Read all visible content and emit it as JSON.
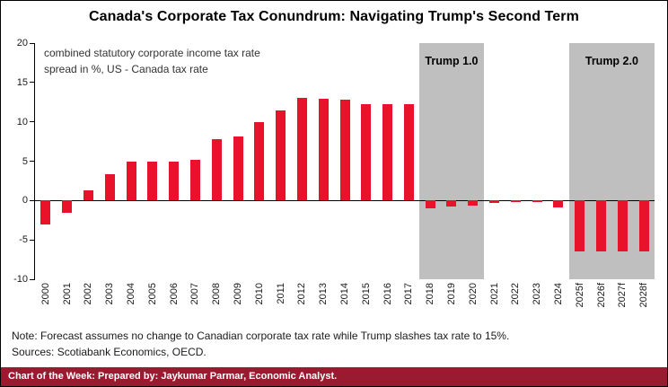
{
  "title": "Canada's Corporate Tax Conundrum: Navigating Trump's Second Term",
  "annotation": {
    "line1": "combined statutory corporate income tax rate",
    "line2": "spread in %, US - Canada tax rate"
  },
  "notes": {
    "line1": "Note: Forecast assumes no change to Canadian corporate tax rate while Trump slashes tax rate to 15%.",
    "line2": "Sources: Scotiabank Economics, OECD."
  },
  "footer": {
    "text": "Chart of the Week: Prepared by: Jaykumar Parmar, Economic Analyst."
  },
  "colors": {
    "bar": "#e8132b",
    "band": "#bfbfbf",
    "footer_bg": "#9a1b2f",
    "axis": "#000000",
    "tick_text": "#1a1a1a"
  },
  "chart_data": {
    "type": "bar",
    "title": "Canada's Corporate Tax Conundrum: Navigating Trump's Second Term",
    "subtitle": "combined statutory corporate income tax rate spread in %, US - Canada tax rate",
    "xlabel": "",
    "ylabel": "spread in %, US - Canada tax rate",
    "ylim": [
      -10,
      20
    ],
    "yticks": [
      20,
      15,
      10,
      5,
      0,
      -5,
      -10
    ],
    "grid": false,
    "legend": "none",
    "categories": [
      "2000",
      "2001",
      "2002",
      "2003",
      "2004",
      "2005",
      "2006",
      "2007",
      "2008",
      "2009",
      "2010",
      "2011",
      "2012",
      "2013",
      "2014",
      "2015",
      "2016",
      "2017",
      "2018",
      "2019",
      "2020",
      "2021",
      "2022",
      "2023",
      "2024",
      "2025f",
      "2026f",
      "2027f",
      "2028f"
    ],
    "values": [
      -3.0,
      -1.6,
      1.3,
      3.4,
      4.9,
      5.0,
      5.0,
      5.2,
      7.8,
      8.1,
      10.0,
      11.5,
      13.0,
      12.9,
      12.8,
      12.3,
      12.2,
      12.2,
      -1.0,
      -0.8,
      -0.6,
      -0.3,
      -0.2,
      -0.2,
      -0.9,
      -6.5,
      -6.5,
      -6.5,
      -6.5
    ],
    "bands": [
      {
        "label": "Trump 1.0",
        "from": "2018",
        "to": "2020"
      },
      {
        "label": "Trump 2.0",
        "from": "2025f",
        "to": "2028f"
      }
    ]
  }
}
